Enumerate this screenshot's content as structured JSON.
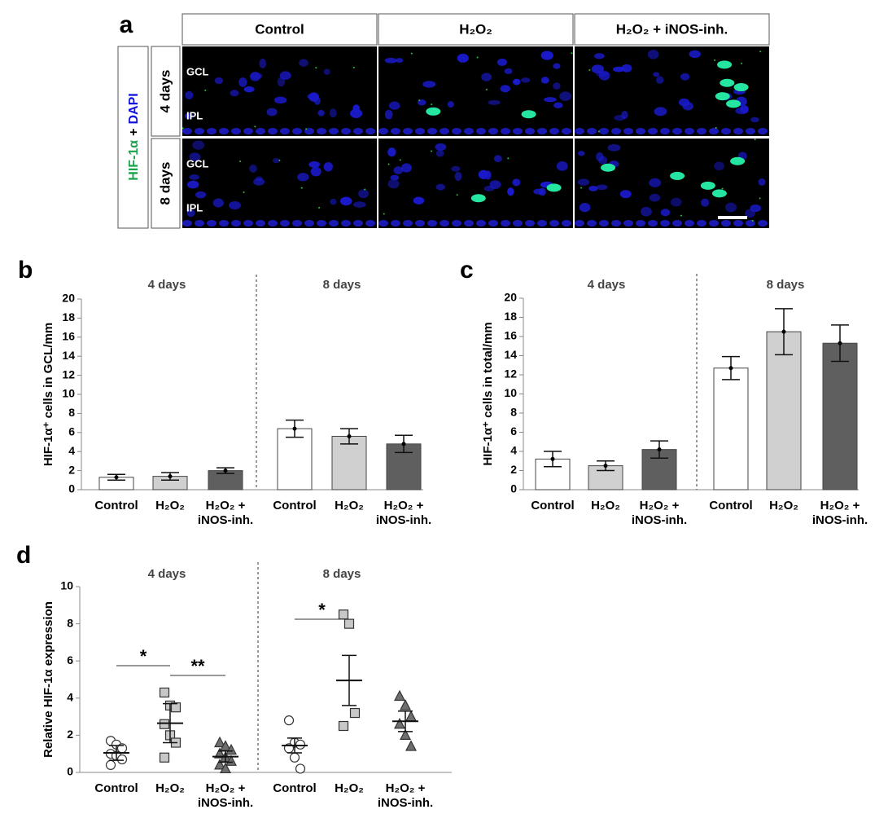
{
  "figure_a": {
    "panel_label": "a",
    "columns": [
      "Control",
      "H₂O₂",
      "H₂O₂ + iNOS-inh."
    ],
    "rows": [
      "4 days",
      "8 days"
    ],
    "stain_green": "HIF-1α",
    "stain_join": "+",
    "stain_blue": "DAPI",
    "layer_labels": [
      "GCL",
      "IPL"
    ]
  },
  "chart_data": [
    {
      "type": "bar",
      "panel_label": "b",
      "groups": [
        "4 days",
        "8 days"
      ],
      "categories": [
        "Control",
        "H₂O₂",
        "H₂O₂ + iNOS-inh.",
        "Control",
        "H₂O₂",
        "H₂O₂ + iNOS-inh."
      ],
      "values": [
        1.3,
        1.4,
        2.0,
        6.4,
        5.6,
        4.8
      ],
      "errors": [
        0.3,
        0.4,
        0.3,
        0.9,
        0.8,
        0.9
      ],
      "colors": [
        "#ffffff",
        "#d0d0d0",
        "#5f5f5f",
        "#ffffff",
        "#d0d0d0",
        "#5f5f5f"
      ],
      "ylabel": "HIF-1α⁺ cells in GCL/mm",
      "ylim": [
        0,
        20
      ],
      "yticks": [
        0,
        2,
        4,
        6,
        8,
        10,
        12,
        14,
        16,
        18,
        20
      ]
    },
    {
      "type": "bar",
      "panel_label": "c",
      "groups": [
        "4 days",
        "8 days"
      ],
      "categories": [
        "Control",
        "H₂O₂",
        "H₂O₂ + iNOS-inh.",
        "Control",
        "H₂O₂",
        "H₂O₂ + iNOS-inh."
      ],
      "values": [
        3.2,
        2.5,
        4.2,
        12.7,
        16.5,
        15.3
      ],
      "errors": [
        0.8,
        0.5,
        0.9,
        1.2,
        2.4,
        1.9
      ],
      "colors": [
        "#ffffff",
        "#d0d0d0",
        "#5f5f5f",
        "#ffffff",
        "#d0d0d0",
        "#5f5f5f"
      ],
      "ylabel": "HIF-1α⁺ cells in total/mm",
      "ylim": [
        0,
        20
      ],
      "yticks": [
        0,
        2,
        4,
        6,
        8,
        10,
        12,
        14,
        16,
        18,
        20
      ]
    },
    {
      "type": "strip",
      "panel_label": "d",
      "groups": [
        "4 days",
        "8 days"
      ],
      "categories": [
        "Control",
        "H₂O₂",
        "H₂O₂ + iNOS-inh.",
        "Control",
        "H₂O₂",
        "H₂O₂ + iNOS-inh."
      ],
      "series": [
        {
          "points": [
            1.7,
            1.5,
            1.3,
            1.0,
            0.9,
            0.7,
            0.4
          ],
          "mean": 1.05,
          "error": 0.4,
          "marker": "circle",
          "color": "#ffffff"
        },
        {
          "points": [
            4.3,
            3.6,
            3.5,
            2.6,
            2.0,
            1.6,
            0.8
          ],
          "mean": 2.65,
          "error": 1.05,
          "marker": "square",
          "color": "#c8c8c8"
        },
        {
          "points": [
            1.6,
            1.4,
            1.2,
            1.0,
            0.8,
            0.6,
            0.4,
            0.2
          ],
          "mean": 0.85,
          "error": 0.3,
          "marker": "triangle",
          "color": "#6e6e6e"
        },
        {
          "points": [
            2.8,
            1.6,
            1.5,
            1.3,
            0.8,
            0.2
          ],
          "mean": 1.45,
          "error": 0.4,
          "marker": "circle",
          "color": "#ffffff"
        },
        {
          "points": [
            8.5,
            8.0,
            3.2,
            2.5
          ],
          "mean": 4.95,
          "error": 1.35,
          "marker": "square",
          "color": "#c8c8c8"
        },
        {
          "points": [
            4.1,
            3.6,
            3.0,
            2.6,
            2.0,
            1.4
          ],
          "mean": 2.75,
          "error": 0.55,
          "marker": "triangle",
          "color": "#6e6e6e"
        }
      ],
      "ylabel": "Relative HIF-1α expression",
      "ylim": [
        0,
        10
      ],
      "yticks": [
        0,
        2,
        4,
        6,
        8,
        10
      ],
      "annotations": [
        "*",
        "**",
        "*"
      ]
    }
  ]
}
